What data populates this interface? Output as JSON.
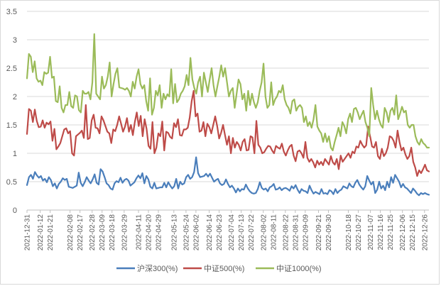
{
  "chart_data": {
    "type": "line",
    "title": "",
    "xlabel": "",
    "ylabel": "",
    "ylim": [
      0,
      3.5
    ],
    "y_ticks": [
      "0",
      "0.5",
      "1",
      "1.5",
      "2",
      "2.5",
      "3",
      "3.5"
    ],
    "x_start": "2021-12-31",
    "x_end": "2022-12-30",
    "x_tick_labels": [
      "2021-12-31",
      "2022-01-12",
      "2022-01-21",
      "2022-02-08",
      "2022-02-17",
      "2022-02-28",
      "2022-03-09",
      "2022-03-18",
      "2022-03-29",
      "2022-04-11",
      "2022-04-20",
      "2022-04-29",
      "2022-05-13",
      "2022-05-24",
      "2022-06-02",
      "2022-06-14",
      "2022-06-23",
      "2022-07-04",
      "2022-07-13",
      "2022-07-22",
      "2022-08-02",
      "2022-08-11",
      "2022-08-22",
      "2022-08-31",
      "2022-09-09",
      "2022-09-21",
      "2022-09-30",
      "2022-10-18",
      "2022-10-27",
      "2022-11-07",
      "2022-11-16",
      "2022-11-25",
      "2022-12-06",
      "2022-12-15",
      "2022-12-26"
    ],
    "grid": true,
    "legend_position": "bottom",
    "series": [
      {
        "name": "沪深300(%)",
        "color": "#4a7ebb",
        "values": [
          0.44,
          0.58,
          0.62,
          0.55,
          0.67,
          0.61,
          0.57,
          0.6,
          0.52,
          0.55,
          0.49,
          0.58,
          0.53,
          0.42,
          0.47,
          0.38,
          0.46,
          0.5,
          0.56,
          0.53,
          0.55,
          0.41,
          0.4,
          0.39,
          0.41,
          0.43,
          0.66,
          0.48,
          0.42,
          0.49,
          0.58,
          0.52,
          0.47,
          0.54,
          0.63,
          0.48,
          0.45,
          0.72,
          0.68,
          0.58,
          0.47,
          0.44,
          0.38,
          0.36,
          0.47,
          0.51,
          0.49,
          0.57,
          0.48,
          0.53,
          0.55,
          0.52,
          0.43,
          0.46,
          0.49,
          0.56,
          0.61,
          0.56,
          0.65,
          0.47,
          0.6,
          0.54,
          0.41,
          0.38,
          0.48,
          0.38,
          0.39,
          0.4,
          0.4,
          0.48,
          0.4,
          0.49,
          0.43,
          0.38,
          0.42,
          0.55,
          0.38,
          0.5,
          0.45,
          0.47,
          0.58,
          0.62,
          0.55,
          0.58,
          0.67,
          0.93,
          0.65,
          0.58,
          0.59,
          0.6,
          0.64,
          0.59,
          0.64,
          0.57,
          0.5,
          0.53,
          0.55,
          0.47,
          0.44,
          0.46,
          0.54,
          0.46,
          0.4,
          0.43,
          0.38,
          0.31,
          0.38,
          0.33,
          0.37,
          0.36,
          0.45,
          0.38,
          0.33,
          0.3,
          0.29,
          0.3,
          0.37,
          0.49,
          0.39,
          0.36,
          0.38,
          0.33,
          0.4,
          0.42,
          0.46,
          0.36,
          0.37,
          0.4,
          0.35,
          0.38,
          0.39,
          0.37,
          0.34,
          0.42,
          0.38,
          0.44,
          0.36,
          0.3,
          0.37,
          0.34,
          0.33,
          0.3,
          0.43,
          0.35,
          0.29,
          0.32,
          0.3,
          0.28,
          0.37,
          0.29,
          0.3,
          0.28,
          0.35,
          0.33,
          0.28,
          0.37,
          0.3,
          0.34,
          0.36,
          0.42,
          0.4,
          0.38,
          0.47,
          0.42,
          0.4,
          0.48,
          0.53,
          0.45,
          0.4,
          0.36,
          0.42,
          0.6,
          0.52,
          0.45,
          0.5,
          0.3,
          0.36,
          0.5,
          0.38,
          0.43,
          0.35,
          0.5,
          0.4,
          0.58,
          0.48,
          0.62,
          0.56,
          0.5,
          0.4,
          0.46,
          0.4,
          0.38,
          0.34,
          0.3,
          0.38,
          0.34,
          0.29,
          0.26,
          0.3,
          0.28,
          0.3,
          0.28,
          0.27
        ]
      },
      {
        "name": "中证500(%)",
        "color": "#be4b48",
        "values": [
          1.34,
          1.78,
          1.75,
          1.55,
          1.77,
          1.57,
          1.46,
          1.47,
          1.58,
          1.45,
          1.54,
          1.51,
          1.56,
          1.22,
          1.43,
          1.07,
          1.12,
          1.18,
          1.3,
          1.42,
          1.44,
          1.35,
          1.39,
          1.0,
          0.96,
          1.3,
          1.33,
          1.36,
          1.4,
          1.27,
          1.85,
          1.25,
          1.27,
          1.58,
          1.68,
          1.45,
          1.44,
          1.35,
          1.65,
          1.58,
          1.48,
          1.38,
          1.35,
          1.18,
          1.42,
          1.39,
          1.5,
          1.65,
          1.52,
          1.38,
          1.47,
          1.62,
          1.38,
          1.5,
          1.32,
          1.55,
          1.72,
          1.48,
          1.66,
          1.3,
          1.6,
          1.43,
          1.13,
          1.08,
          1.55,
          1.0,
          1.1,
          1.35,
          1.3,
          1.56,
          1.05,
          1.38,
          1.36,
          1.29,
          1.26,
          1.53,
          1.46,
          1.6,
          1.32,
          1.31,
          1.42,
          1.42,
          1.45,
          1.63,
          1.92,
          2.1,
          1.65,
          1.7,
          1.38,
          1.4,
          1.55,
          1.3,
          1.52,
          1.46,
          1.35,
          1.5,
          1.65,
          1.48,
          1.26,
          1.36,
          1.5,
          1.32,
          1.15,
          1.3,
          1.0,
          1.27,
          1.1,
          1.2,
          1.15,
          1.05,
          1.2,
          1.25,
          1.05,
          1.06,
          1.3,
          1.28,
          1.0,
          1.57,
          1.15,
          1.1,
          1.0,
          1.02,
          1.08,
          1.13,
          1.12,
          1.05,
          1.0,
          1.13,
          1.1,
          1.08,
          1.17,
          1.03,
          0.96,
          1.05,
          1.12,
          1.15,
          0.96,
          0.86,
          1.03,
          1.05,
          1.0,
          0.92,
          1.2,
          0.92,
          0.85,
          0.9,
          0.84,
          0.75,
          0.87,
          0.8,
          0.85,
          0.79,
          0.9,
          0.85,
          0.8,
          0.95,
          0.84,
          0.8,
          0.9,
          0.72,
          0.96,
          0.85,
          0.9,
          0.95,
          1.0,
          0.92,
          1.03,
          1.0,
          1.12,
          1.1,
          1.22,
          1.15,
          1.1,
          1.14,
          1.47,
          1.3,
          1.12,
          1.1,
          1.2,
          0.95,
          0.9,
          1.08,
          0.95,
          1.0,
          1.1,
          1.3,
          1.28,
          1.22,
          1.1,
          1.4,
          1.2,
          1.05,
          1.1,
          0.98,
          0.9,
          0.95,
          1.1,
          0.85,
          0.75,
          0.6,
          0.7,
          0.65,
          0.72,
          0.8,
          0.7,
          0.68
        ]
      },
      {
        "name": "中证1000(%)",
        "color": "#9bbb59",
        "values": [
          2.32,
          2.75,
          2.7,
          2.43,
          2.62,
          2.32,
          2.26,
          2.28,
          2.2,
          2.43,
          2.4,
          2.42,
          2.7,
          2.33,
          2.35,
          1.92,
          1.9,
          2.18,
          1.8,
          1.72,
          1.85,
          1.85,
          2.08,
          1.83,
          1.8,
          2.02,
          2.0,
          1.76,
          1.72,
          2.1,
          2.05,
          2.05,
          2.08,
          1.95,
          2.25,
          3.1,
          2.05,
          2.0,
          1.95,
          2.35,
          2.14,
          2.2,
          2.35,
          2.6,
          2.0,
          2.22,
          2.4,
          2.5,
          2.16,
          2.15,
          2.14,
          2.12,
          2.15,
          2.1,
          2.0,
          2.26,
          2.14,
          2.35,
          2.48,
          2.22,
          2.14,
          2.2,
          1.92,
          1.75,
          2.32,
          1.68,
          1.8,
          2.1,
          2.02,
          2.2,
          1.8,
          2.05,
          1.95,
          2.04,
          2.0,
          2.48,
          1.88,
          2.22,
          1.9,
          1.95,
          2.05,
          2.1,
          2.18,
          2.38,
          2.2,
          2.68,
          2.3,
          2.15,
          2.05,
          2.25,
          2.35,
          2.0,
          2.42,
          2.25,
          2.08,
          2.3,
          2.5,
          2.2,
          2.0,
          2.18,
          2.35,
          2.55,
          2.35,
          2.5,
          2.25,
          2.0,
          2.1,
          2.15,
          1.8,
          2.05,
          2.3,
          2.22,
          1.95,
          2.05,
          1.75,
          2.1,
          1.85,
          2.05,
          1.9,
          1.8,
          1.9,
          2.1,
          2.25,
          2.58,
          2.0,
          1.8,
          1.85,
          2.25,
          1.85,
          1.95,
          2.0,
          2.1,
          2.07,
          2.2,
          1.95,
          1.85,
          1.8,
          1.7,
          1.92,
          1.95,
          1.75,
          1.82,
          1.85,
          1.8,
          1.55,
          1.65,
          1.48,
          1.55,
          1.45,
          1.6,
          1.85,
          1.47,
          1.4,
          1.35,
          1.2,
          1.35,
          1.2,
          1.3,
          1.1,
          1.05,
          1.2,
          1.32,
          1.45,
          1.3,
          1.55,
          1.48,
          1.35,
          1.6,
          1.7,
          1.55,
          1.78,
          1.8,
          1.72,
          1.6,
          1.68,
          1.75,
          1.55,
          1.45,
          1.3,
          2.15,
          1.85,
          1.6,
          1.75,
          1.6,
          1.5,
          1.45,
          1.8,
          1.72,
          1.55,
          1.75,
          1.8,
          1.68,
          2.02,
          1.6,
          1.7,
          1.82,
          1.72,
          1.75,
          1.5,
          1.45,
          1.5,
          1.5,
          1.3,
          1.2,
          1.15,
          1.25,
          1.18,
          1.15,
          1.1,
          1.1
        ]
      }
    ]
  }
}
